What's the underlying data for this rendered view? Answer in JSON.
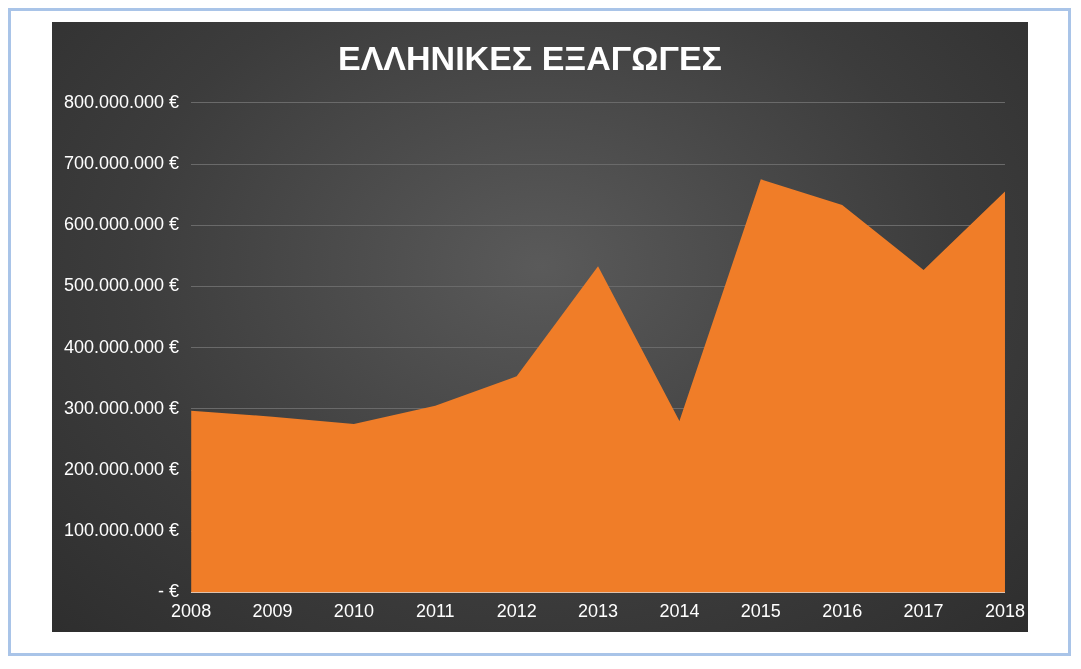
{
  "chart_data": {
    "type": "area",
    "title": "ΕΛΛΗΝΙΚΕΣ ΕΞΑΓΩΓΕΣ",
    "categories": [
      "2008",
      "2009",
      "2010",
      "2011",
      "2012",
      "2013",
      "2014",
      "2015",
      "2016",
      "2017",
      "2018"
    ],
    "values": [
      297000000,
      287000000,
      275000000,
      305000000,
      353000000,
      533000000,
      280000000,
      675000000,
      633000000,
      527000000,
      655000000
    ],
    "color": "#f07d28",
    "ylim": [
      0,
      800000000
    ],
    "yticks": [
      {
        "value": 0,
        "label": "- €"
      },
      {
        "value": 100000000,
        "label": "100.000.000 €"
      },
      {
        "value": 200000000,
        "label": "200.000.000 €"
      },
      {
        "value": 300000000,
        "label": "300.000.000 €"
      },
      {
        "value": 400000000,
        "label": "400.000.000 €"
      },
      {
        "value": 500000000,
        "label": "500.000.000 €"
      },
      {
        "value": 600000000,
        "label": "600.000.000 €"
      },
      {
        "value": 700000000,
        "label": "700.000.000 €"
      },
      {
        "value": 800000000,
        "label": "800.000.000 €"
      }
    ],
    "grid": "y"
  }
}
